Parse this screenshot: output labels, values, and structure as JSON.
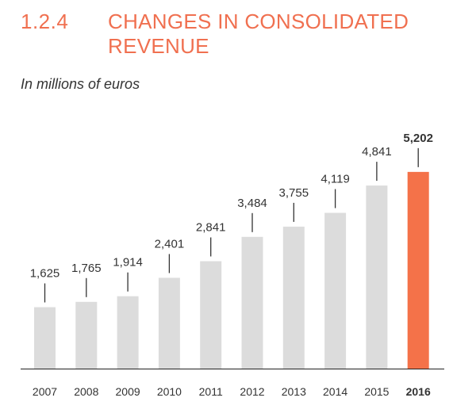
{
  "section": {
    "number": "1.2.4",
    "title": "CHANGES IN CONSOLIDATED REVENUE"
  },
  "subtitle": "In millions of euros",
  "colors": {
    "accent": "#f07050",
    "bar": "#dcdcdc",
    "highlight": "#f47249",
    "text": "#333333",
    "baseline": "#222222"
  },
  "chart_data": {
    "type": "bar",
    "title": "CHANGES IN CONSOLIDATED REVENUE",
    "ylabel": "In millions of euros",
    "xlabel": "",
    "categories": [
      "2007",
      "2008",
      "2009",
      "2010",
      "2011",
      "2012",
      "2013",
      "2014",
      "2015",
      "2016"
    ],
    "values": [
      1625,
      1765,
      1914,
      2401,
      2841,
      3484,
      3755,
      4119,
      4841,
      5202
    ],
    "value_labels": [
      "1,625",
      "1,765",
      "1,914",
      "2,401",
      "2,841",
      "3,484",
      "3,755",
      "4,119",
      "4,841",
      "5,202"
    ],
    "highlight_category": "2016",
    "ylim": [
      0,
      5600
    ],
    "grid": false,
    "legend": "none"
  }
}
